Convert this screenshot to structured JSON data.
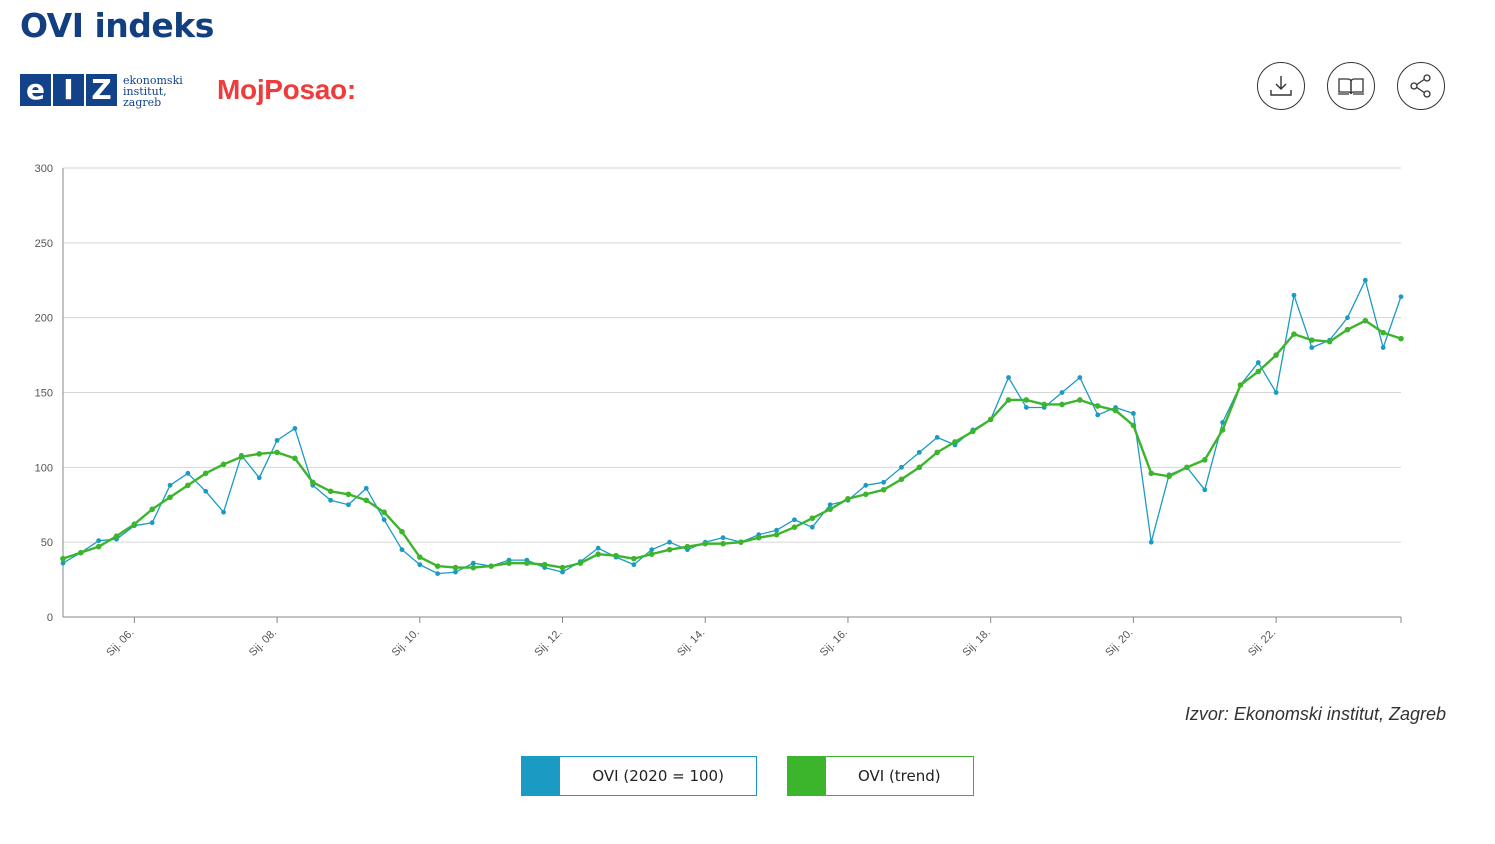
{
  "page": {
    "title": "OVI indeks",
    "source": "Izvor: Ekonomski institut, Zagreb"
  },
  "logos": {
    "eiz_letters": [
      "e",
      "I",
      "Z"
    ],
    "eiz_lines": [
      "ekonomski",
      "institut,",
      "zagreb"
    ],
    "mojposao": "MojPosao:"
  },
  "toolbar": {
    "icons": [
      "download-icon",
      "book-icon",
      "share-icon"
    ]
  },
  "colors": {
    "title": "#123f80",
    "ovi": "#1b9bc4",
    "trend": "#3cb52c",
    "mojposao": "#ee3b3b"
  },
  "legend": [
    {
      "label": "OVI (2020 = 100)",
      "color": "#1b9bc4"
    },
    {
      "label": "OVI (trend)",
      "color": "#3cb52c"
    }
  ],
  "chart_data": {
    "type": "line",
    "title": "",
    "xlabel": "",
    "ylabel": "",
    "ylim": [
      0,
      300
    ],
    "yticks": [
      0,
      50,
      100,
      150,
      200,
      250,
      300
    ],
    "xlim": [
      "2005-01",
      "2023-10"
    ],
    "grid": true,
    "legend_position": "bottom-center",
    "xticks": [
      {
        "date": "2006-01",
        "label": "Sij. 06."
      },
      {
        "date": "2008-01",
        "label": "Sij. 08."
      },
      {
        "date": "2010-01",
        "label": "Sij. 10."
      },
      {
        "date": "2012-01",
        "label": "Sij. 12."
      },
      {
        "date": "2014-01",
        "label": "Sij. 14."
      },
      {
        "date": "2016-01",
        "label": "Sij. 16."
      },
      {
        "date": "2018-01",
        "label": "Sij. 18."
      },
      {
        "date": "2020-01",
        "label": "Sij. 20."
      },
      {
        "date": "2022-01",
        "label": "Sij. 22."
      }
    ],
    "series": [
      {
        "name": "OVI (2020 = 100)",
        "color": "#1b9bc4",
        "points": [
          [
            "2005-01",
            36
          ],
          [
            "2005-04",
            43
          ],
          [
            "2005-07",
            51
          ],
          [
            "2005-10",
            52
          ],
          [
            "2006-01",
            61
          ],
          [
            "2006-04",
            63
          ],
          [
            "2006-07",
            88
          ],
          [
            "2006-10",
            96
          ],
          [
            "2007-01",
            84
          ],
          [
            "2007-04",
            70
          ],
          [
            "2007-07",
            108
          ],
          [
            "2007-10",
            93
          ],
          [
            "2008-01",
            118
          ],
          [
            "2008-04",
            126
          ],
          [
            "2008-07",
            88
          ],
          [
            "2008-10",
            78
          ],
          [
            "2009-01",
            75
          ],
          [
            "2009-04",
            86
          ],
          [
            "2009-07",
            65
          ],
          [
            "2009-10",
            45
          ],
          [
            "2010-01",
            35
          ],
          [
            "2010-04",
            29
          ],
          [
            "2010-07",
            30
          ],
          [
            "2010-10",
            36
          ],
          [
            "2011-01",
            34
          ],
          [
            "2011-04",
            38
          ],
          [
            "2011-07",
            38
          ],
          [
            "2011-10",
            33
          ],
          [
            "2012-01",
            30
          ],
          [
            "2012-04",
            37
          ],
          [
            "2012-07",
            46
          ],
          [
            "2012-10",
            40
          ],
          [
            "2013-01",
            35
          ],
          [
            "2013-04",
            45
          ],
          [
            "2013-07",
            50
          ],
          [
            "2013-10",
            45
          ],
          [
            "2014-01",
            50
          ],
          [
            "2014-04",
            53
          ],
          [
            "2014-07",
            50
          ],
          [
            "2014-10",
            55
          ],
          [
            "2015-01",
            58
          ],
          [
            "2015-04",
            65
          ],
          [
            "2015-07",
            60
          ],
          [
            "2015-10",
            75
          ],
          [
            "2016-01",
            78
          ],
          [
            "2016-04",
            88
          ],
          [
            "2016-07",
            90
          ],
          [
            "2016-10",
            100
          ],
          [
            "2017-01",
            110
          ],
          [
            "2017-04",
            120
          ],
          [
            "2017-07",
            115
          ],
          [
            "2017-10",
            125
          ],
          [
            "2018-01",
            132
          ],
          [
            "2018-04",
            160
          ],
          [
            "2018-07",
            140
          ],
          [
            "2018-10",
            140
          ],
          [
            "2019-01",
            150
          ],
          [
            "2019-04",
            160
          ],
          [
            "2019-07",
            135
          ],
          [
            "2019-10",
            140
          ],
          [
            "2020-01",
            136
          ],
          [
            "2020-04",
            50
          ],
          [
            "2020-07",
            95
          ],
          [
            "2020-10",
            100
          ],
          [
            "2021-01",
            85
          ],
          [
            "2021-04",
            130
          ],
          [
            "2021-07",
            155
          ],
          [
            "2021-10",
            170
          ],
          [
            "2022-01",
            150
          ],
          [
            "2022-04",
            215
          ],
          [
            "2022-07",
            180
          ],
          [
            "2022-10",
            185
          ],
          [
            "2023-01",
            200
          ],
          [
            "2023-04",
            225
          ],
          [
            "2023-07",
            180
          ],
          [
            "2023-10",
            214
          ]
        ]
      },
      {
        "name": "OVI (trend)",
        "color": "#3cb52c",
        "points": [
          [
            "2005-01",
            39
          ],
          [
            "2005-04",
            43
          ],
          [
            "2005-07",
            47
          ],
          [
            "2005-10",
            54
          ],
          [
            "2006-01",
            62
          ],
          [
            "2006-04",
            72
          ],
          [
            "2006-07",
            80
          ],
          [
            "2006-10",
            88
          ],
          [
            "2007-01",
            96
          ],
          [
            "2007-04",
            102
          ],
          [
            "2007-07",
            107
          ],
          [
            "2007-10",
            109
          ],
          [
            "2008-01",
            110
          ],
          [
            "2008-04",
            106
          ],
          [
            "2008-07",
            90
          ],
          [
            "2008-10",
            84
          ],
          [
            "2009-01",
            82
          ],
          [
            "2009-04",
            78
          ],
          [
            "2009-07",
            70
          ],
          [
            "2009-10",
            57
          ],
          [
            "2010-01",
            40
          ],
          [
            "2010-04",
            34
          ],
          [
            "2010-07",
            33
          ],
          [
            "2010-10",
            33
          ],
          [
            "2011-01",
            34
          ],
          [
            "2011-04",
            36
          ],
          [
            "2011-07",
            36
          ],
          [
            "2011-10",
            35
          ],
          [
            "2012-01",
            33
          ],
          [
            "2012-04",
            36
          ],
          [
            "2012-07",
            42
          ],
          [
            "2012-10",
            41
          ],
          [
            "2013-01",
            39
          ],
          [
            "2013-04",
            42
          ],
          [
            "2013-07",
            45
          ],
          [
            "2013-10",
            47
          ],
          [
            "2014-01",
            49
          ],
          [
            "2014-04",
            49
          ],
          [
            "2014-07",
            50
          ],
          [
            "2014-10",
            53
          ],
          [
            "2015-01",
            55
          ],
          [
            "2015-04",
            60
          ],
          [
            "2015-07",
            66
          ],
          [
            "2015-10",
            72
          ],
          [
            "2016-01",
            79
          ],
          [
            "2016-04",
            82
          ],
          [
            "2016-07",
            85
          ],
          [
            "2016-10",
            92
          ],
          [
            "2017-01",
            100
          ],
          [
            "2017-04",
            110
          ],
          [
            "2017-07",
            117
          ],
          [
            "2017-10",
            124
          ],
          [
            "2018-01",
            132
          ],
          [
            "2018-04",
            145
          ],
          [
            "2018-07",
            145
          ],
          [
            "2018-10",
            142
          ],
          [
            "2019-01",
            142
          ],
          [
            "2019-04",
            145
          ],
          [
            "2019-07",
            141
          ],
          [
            "2019-10",
            138
          ],
          [
            "2020-01",
            128
          ],
          [
            "2020-04",
            96
          ],
          [
            "2020-07",
            94
          ],
          [
            "2020-10",
            100
          ],
          [
            "2021-01",
            105
          ],
          [
            "2021-04",
            125
          ],
          [
            "2021-07",
            155
          ],
          [
            "2021-10",
            164
          ],
          [
            "2022-01",
            175
          ],
          [
            "2022-04",
            189
          ],
          [
            "2022-07",
            185
          ],
          [
            "2022-10",
            184
          ],
          [
            "2023-01",
            192
          ],
          [
            "2023-04",
            198
          ],
          [
            "2023-07",
            190
          ],
          [
            "2023-10",
            186
          ]
        ]
      }
    ]
  }
}
